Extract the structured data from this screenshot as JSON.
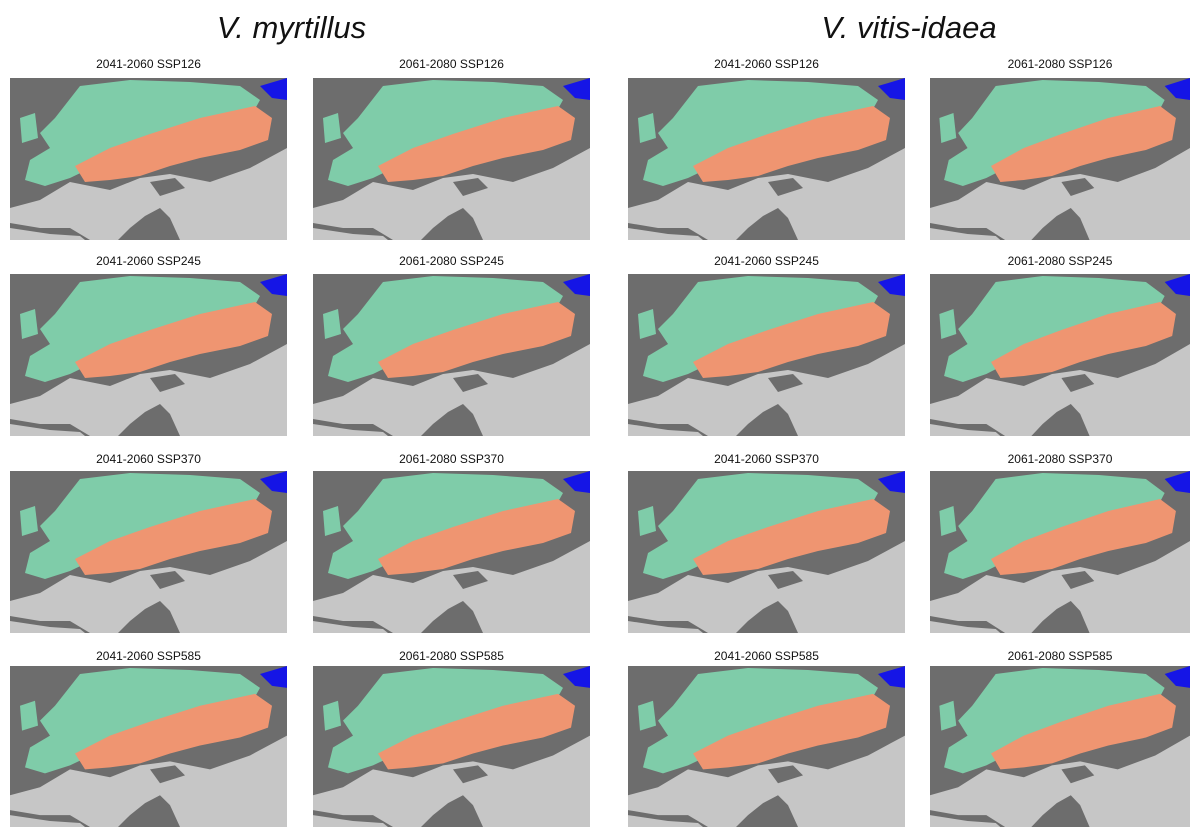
{
  "species": [
    {
      "name": "V. myrtillus",
      "panels": [
        "2041-2060 SSP126",
        "2061-2080 SSP126",
        "2041-2060 SSP245",
        "2061-2080 SSP245",
        "2041-2060 SSP370",
        "2061-2080 SSP370",
        "2041-2060 SSP585",
        "2061-2080 SSP585"
      ]
    },
    {
      "name": "V. vitis-idaea",
      "panels": [
        "2041-2060 SSP126",
        "2061-2080 SSP126",
        "2041-2060 SSP245",
        "2061-2080 SSP245",
        "2041-2060 SSP370",
        "2061-2080 SSP370",
        "2041-2060 SSP585",
        "2061-2080 SSP585"
      ]
    }
  ]
}
